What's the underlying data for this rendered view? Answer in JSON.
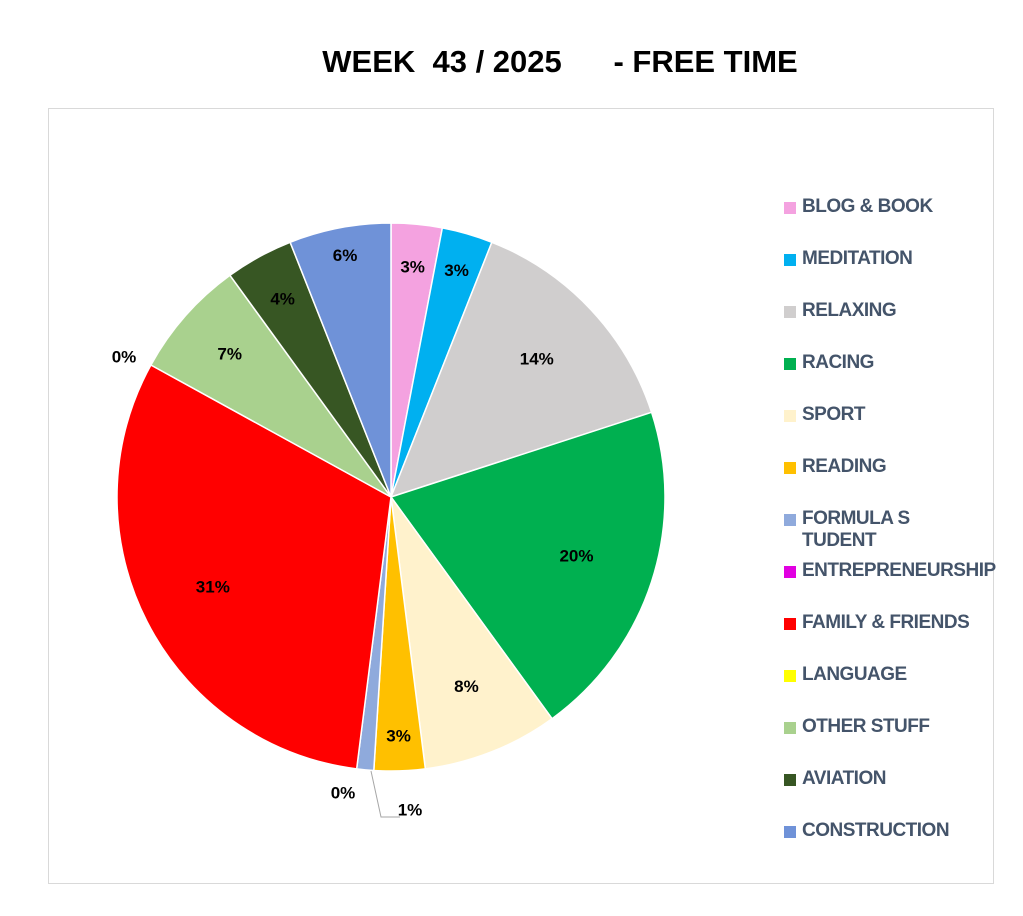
{
  "chart_data": {
    "type": "pie",
    "title": "WEEK  43 / 2025      - FREE TIME",
    "legend_position": "right",
    "slices": [
      {
        "name": "BLOG & BOOK",
        "value": 3,
        "label": "3%",
        "color": "#f4a2e0"
      },
      {
        "name": "MEDITATION",
        "value": 3,
        "label": "3%",
        "color": "#00b0f0"
      },
      {
        "name": "RELAXING",
        "value": 14,
        "label": "14%",
        "color": "#d0cece"
      },
      {
        "name": "RACING",
        "value": 20,
        "label": "20%",
        "color": "#00b050"
      },
      {
        "name": "SPORT",
        "value": 8,
        "label": "8%",
        "color": "#fff2cc"
      },
      {
        "name": "READING",
        "value": 3,
        "label": "3%",
        "color": "#ffc000"
      },
      {
        "name": "FORMULA STUDENT",
        "value": 1,
        "label": "1%",
        "color": "#8faadc"
      },
      {
        "name": "ENTREPRENEURSHIP",
        "value": 0,
        "label": "0%",
        "color": "#e100e1"
      },
      {
        "name": "FAMILY & FRIENDS",
        "value": 31,
        "label": "31%",
        "color": "#ff0000"
      },
      {
        "name": "LANGUAGE",
        "value": 0,
        "label": "0%",
        "color": "#ffff00"
      },
      {
        "name": "OTHER STUFF",
        "value": 7,
        "label": "7%",
        "color": "#a9d18e"
      },
      {
        "name": "AVIATION",
        "value": 4,
        "label": "4%",
        "color": "#375623"
      },
      {
        "name": "CONSTRUCTION",
        "value": 6,
        "label": "6%",
        "color": "#6f92d8"
      }
    ]
  }
}
